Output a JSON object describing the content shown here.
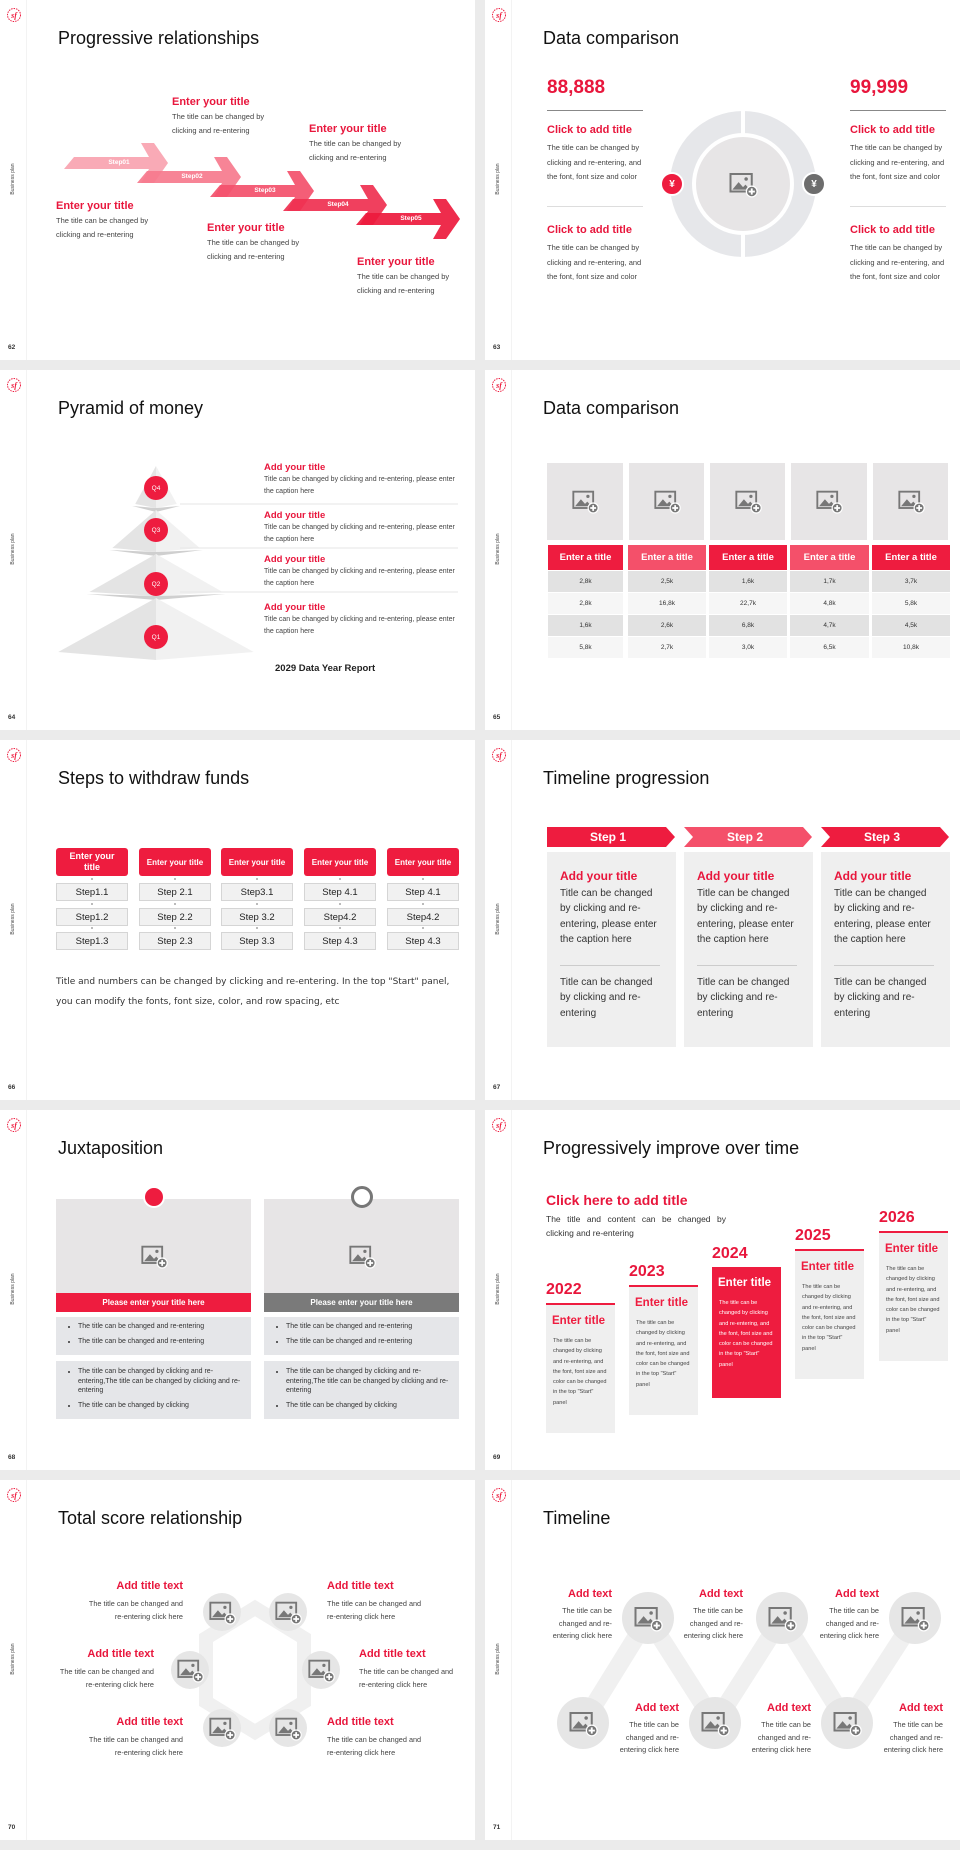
{
  "colors": {
    "accent": "#ee1c3f",
    "accent_light": "#f4506a",
    "gray_box": "#efefef",
    "gray_dark": "#7a7a7a"
  },
  "common": {
    "sidebar_label": "Business plan",
    "logo_text": "sf"
  },
  "slides": [
    {
      "page": "62",
      "title": "Progressive relationships",
      "steps": [
        "Step01",
        "Step02",
        "Step03",
        "Step04",
        "Step05"
      ],
      "items": [
        {
          "title": "Enter your title",
          "desc": "The title can be changed by clicking and re-entering"
        },
        {
          "title": "Enter your title",
          "desc": "The title can be changed by clicking and re-entering"
        },
        {
          "title": "Enter your title",
          "desc": "The title can be changed by clicking and re-entering"
        },
        {
          "title": "Enter your title",
          "desc": "The title can be changed by clicking and re-entering"
        },
        {
          "title": "Enter your title",
          "desc": "The title can be changed by clicking and re-entering"
        }
      ]
    },
    {
      "page": "63",
      "title": "Data comparison",
      "numbers": [
        "88,888",
        "99,999"
      ],
      "icons": [
        "money-hand-icon",
        "money-bag-icon"
      ],
      "items": [
        {
          "title": "Click to add title",
          "desc": "The title can be changed by clicking and re-entering, and the font, font size and color"
        },
        {
          "title": "Click to add title",
          "desc": "The title can be changed by clicking and re-entering, and the font, font size and color"
        },
        {
          "title": "Click to add title",
          "desc": "The title can be changed by clicking and re-entering, and the font, font size and color"
        },
        {
          "title": "Click to add title",
          "desc": "The title can be changed by clicking and re-entering, and the font, font size and color"
        }
      ]
    },
    {
      "page": "64",
      "title": "Pyramid of money",
      "levels": [
        "Q4",
        "Q3",
        "Q2",
        "Q1"
      ],
      "items": [
        {
          "title": "Add your title",
          "desc": "Title can be changed by clicking and re-entering, please enter the caption here"
        },
        {
          "title": "Add your title",
          "desc": "Title can be changed by clicking and re-entering, please enter the caption here"
        },
        {
          "title": "Add your title",
          "desc": "Title can be changed by clicking and re-entering, please enter the caption here"
        },
        {
          "title": "Add your title",
          "desc": "Title can be changed by clicking and re-entering, please enter the caption here"
        }
      ],
      "footer": "2029 Data Year Report"
    },
    {
      "page": "65",
      "title": "Data comparison",
      "headers": [
        "Enter a title",
        "Enter a title",
        "Enter a title",
        "Enter a title",
        "Enter a title"
      ],
      "rows": [
        [
          "2,8k",
          "2,5k",
          "1,6k",
          "1,7k",
          "3,7k"
        ],
        [
          "2,8k",
          "16,8k",
          "22,7k",
          "4,8k",
          "5,8k"
        ],
        [
          "1,6k",
          "2,6k",
          "6,8k",
          "4,7k",
          "4,5k"
        ],
        [
          "5,8k",
          "2,7k",
          "3,0k",
          "6,5k",
          "10,8k"
        ]
      ]
    },
    {
      "page": "66",
      "title": "Steps to withdraw funds",
      "columns": [
        {
          "header": "Enter your title",
          "steps": [
            "Step1.1",
            "Step1.2",
            "Step1.3"
          ]
        },
        {
          "header": "Enter your title",
          "steps": [
            "Step 2.1",
            "Step 2.2",
            "Step 2.3"
          ]
        },
        {
          "header": "Enter your title",
          "steps": [
            "Step3.1",
            "Step 3.2",
            "Step 3.3"
          ]
        },
        {
          "header": "Enter your title",
          "steps": [
            "Step 4.1",
            "Step4.2",
            "Step 4.3"
          ]
        },
        {
          "header": "Enter your title",
          "steps": [
            "Step 4.1",
            "Step4.2",
            "Step 4.3"
          ]
        }
      ],
      "note": "Title and numbers can be changed by clicking and re-entering. In the top \"Start\" panel, you can modify the fonts, font size, color, and row spacing, etc"
    },
    {
      "page": "67",
      "title": "Timeline progression",
      "steps": [
        {
          "label": "Step 1",
          "title": "Add your title",
          "desc": "Title can be changed by clicking and re-entering, please enter the caption here",
          "desc2": "Title can be changed by clicking and re-entering"
        },
        {
          "label": "Step 2",
          "title": "Add your title",
          "desc": "Title can be changed by clicking and re-entering, please enter the caption here",
          "desc2": "Title can be changed by clicking and re-entering"
        },
        {
          "label": "Step 3",
          "title": "Add your title",
          "desc": "Title can be changed by clicking and re-entering, please enter the caption here",
          "desc2": "Title can be changed by clicking and re-entering"
        }
      ]
    },
    {
      "page": "68",
      "title": "Juxtaposition",
      "panels": [
        {
          "icon": "bar-chart-icon",
          "bar": "Please enter your title here",
          "bullets1": [
            "The title can be changed and re-entering",
            "The title can be changed and re-entering"
          ],
          "bullets2": [
            "The title can be changed by clicking and re-entering,The title can be changed by clicking and re-entering",
            "The title can be changed by clicking"
          ]
        },
        {
          "icon": "pie-chart-icon",
          "bar": "Please enter your title here",
          "bullets1": [
            "The title can be changed and re-entering",
            "The title can be changed and re-entering"
          ],
          "bullets2": [
            "The title can be changed by clicking and re-entering,The title can be changed by clicking and re-entering",
            "The title can be changed by clicking"
          ]
        }
      ]
    },
    {
      "page": "69",
      "title": "Progressively improve over time",
      "heading": "Click here to add title",
      "subheading": "The title and content can be changed by clicking and re-entering",
      "years": [
        {
          "year": "2022",
          "title": "Enter title",
          "desc": "The title can be changed by clicking and re-entering, and the font, font size and color can be changed in the top \"Start\" panel",
          "highlight": false
        },
        {
          "year": "2023",
          "title": "Enter title",
          "desc": "The title can be changed by clicking and re-entering, and the font, font size and color can be changed in the top \"Start\" panel",
          "highlight": false
        },
        {
          "year": "2024",
          "title": "Enter title",
          "desc": "The title can be changed by clicking and re-entering, and the font, font size and color can be changed in the top \"Start\" panel",
          "highlight": true
        },
        {
          "year": "2025",
          "title": "Enter title",
          "desc": "The title can be changed by clicking and re-entering, and the font, font size and color can be changed in the top \"Start\" panel",
          "highlight": false
        },
        {
          "year": "2026",
          "title": "Enter title",
          "desc": "The title can be changed by clicking and re-entering, and the font, font size and color can be changed in the top \"Start\" panel",
          "highlight": false
        }
      ]
    },
    {
      "page": "70",
      "title": "Total score relationship",
      "items": [
        {
          "title": "Add title text",
          "desc": "The title can be changed and re-entering click here"
        },
        {
          "title": "Add title text",
          "desc": "The title can be changed and re-entering click here"
        },
        {
          "title": "Add title text",
          "desc": "The title can be changed and re-entering click here"
        },
        {
          "title": "Add title text",
          "desc": "The title can be changed and re-entering click here"
        },
        {
          "title": "Add title text",
          "desc": "The title can be changed and re-entering click here"
        },
        {
          "title": "Add title text",
          "desc": "The title can be changed and re-entering click here"
        }
      ]
    },
    {
      "page": "71",
      "title": "Timeline",
      "items": [
        {
          "title": "Add text",
          "desc": "The title can be changed and re-entering click here"
        },
        {
          "title": "Add text",
          "desc": "The title can be changed and re-entering click here"
        },
        {
          "title": "Add text",
          "desc": "The title can be changed and re-entering click here"
        },
        {
          "title": "Add text",
          "desc": "The title can be changed and re-entering click here"
        },
        {
          "title": "Add text",
          "desc": "The title can be changed and re-entering click here"
        },
        {
          "title": "Add text",
          "desc": "The title can be changed and re-entering click here"
        }
      ]
    }
  ]
}
